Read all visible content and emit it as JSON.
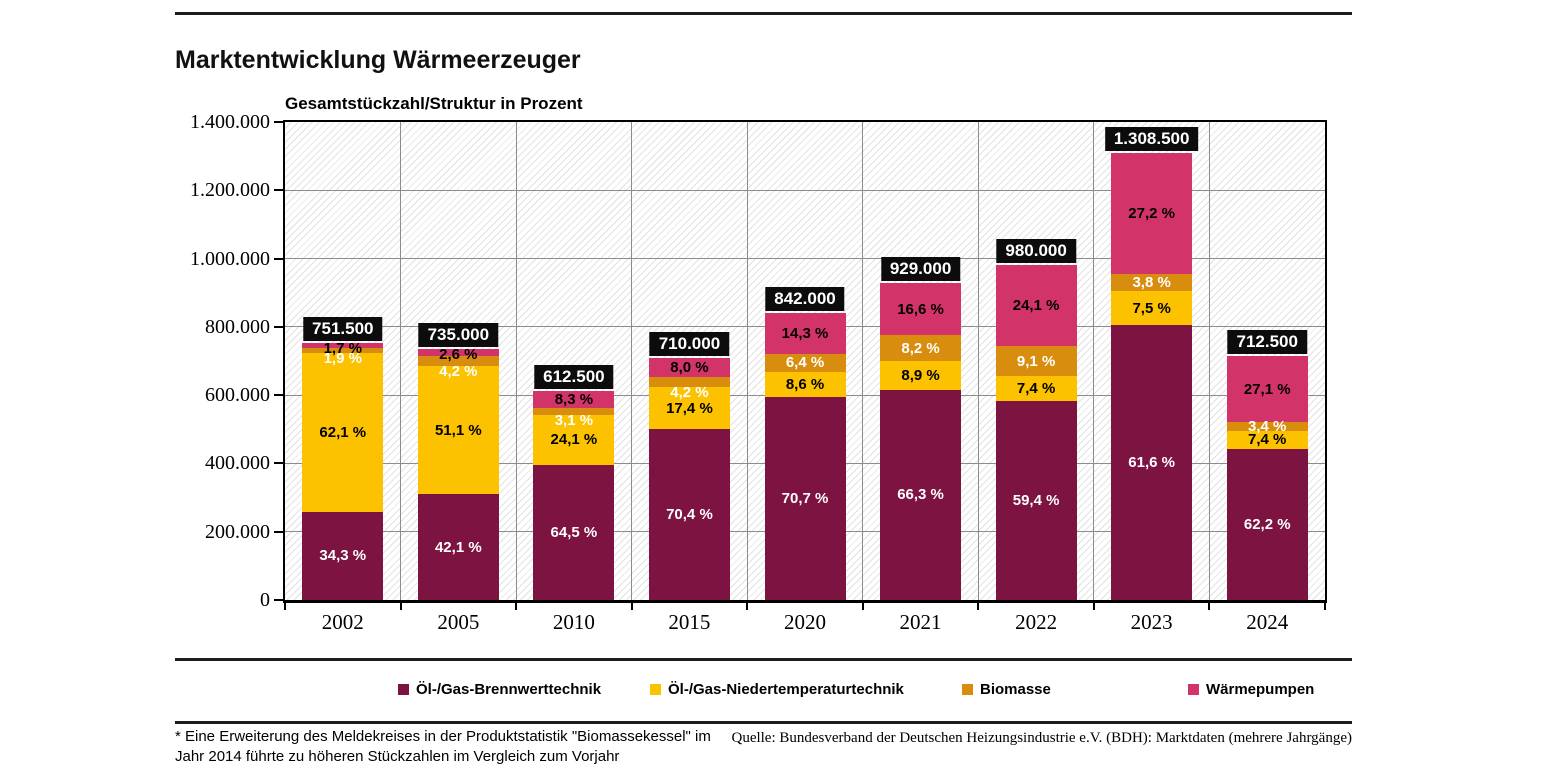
{
  "page": {
    "title": "Marktentwicklung Wärmeerzeuger",
    "footnote_line1": "* Eine Erweiterung des Meldekreises in der Produktstatistik \"Biomassekessel\" im",
    "footnote_line2": "Jahr 2014 führte zu höheren Stückzahlen im Vergleich zum Vorjahr",
    "source": "Quelle: Bundesverband der Deutschen Heizungsindustrie e.V. (BDH): Marktdaten (mehrere Jahrgänge)"
  },
  "chart_data": {
    "type": "bar",
    "stacked": true,
    "title": "Gesamtstückzahl/Struktur in Prozent",
    "categories": [
      "2002",
      "2005",
      "2010",
      "2015",
      "2020",
      "2021",
      "2022",
      "2023",
      "2024"
    ],
    "totals": [
      751500,
      735000,
      612500,
      710000,
      842000,
      929000,
      980000,
      1308500,
      712500
    ],
    "total_labels": [
      "751.500",
      "735.000",
      "612.500",
      "710.000",
      "842.000",
      "929.000",
      "980.000",
      "1.308.500",
      "712.500"
    ],
    "series": [
      {
        "name": "Öl-/Gas-Brennwerttechnik",
        "color": "#7d1341",
        "label_color": "#ffffff",
        "percentages": [
          34.3,
          42.1,
          64.5,
          70.4,
          70.7,
          66.3,
          59.4,
          61.6,
          62.2
        ]
      },
      {
        "name": "Öl-/Gas-Niedertemperaturtechnik",
        "color": "#fcc200",
        "label_color": "#000000",
        "percentages": [
          62.1,
          51.1,
          24.1,
          17.4,
          8.6,
          8.9,
          7.4,
          7.5,
          7.4
        ]
      },
      {
        "name": "Biomasse",
        "color": "#d88d0e",
        "label_color": "#ffffff",
        "percentages": [
          1.9,
          4.2,
          3.1,
          4.2,
          6.4,
          8.2,
          9.1,
          3.8,
          3.4
        ]
      },
      {
        "name": "Wärmepumpen",
        "color": "#d23368",
        "label_color": "#000000",
        "percentages": [
          1.7,
          2.6,
          8.3,
          8.0,
          14.3,
          16.6,
          24.1,
          27.2,
          27.1
        ]
      }
    ],
    "ylim": [
      0,
      1400000
    ],
    "y_tick_step": 200000,
    "y_ticks": [
      "1.400.000",
      "1.200.000",
      "1.000.000",
      "800.000",
      "600.000",
      "400.000",
      "200.000",
      "0"
    ],
    "grid": true,
    "hatch_background": true,
    "legend_position": "bottom",
    "total_box_bg": "#0c0c0c",
    "total_box_text": "#ffffff"
  }
}
